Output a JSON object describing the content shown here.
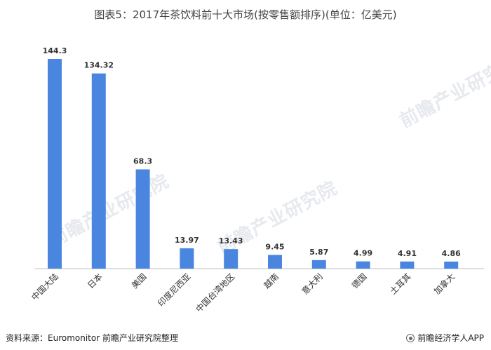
{
  "title": "图表5：2017年茶饮料前十大市场(按零售额排序)(单位：亿美元)",
  "footer": {
    "source": "资料来源：Euromonitor 前瞻产业研究院整理",
    "brand": "前瞻经济学人APP"
  },
  "watermark": "前瞻产业研究院",
  "chart_data": {
    "type": "bar",
    "categories": [
      "中国大陆",
      "日本",
      "美国",
      "印度尼西亚",
      "中国台湾地区",
      "越南",
      "意大利",
      "德国",
      "土耳其",
      "加拿大"
    ],
    "values": [
      144.3,
      134.32,
      68.3,
      13.97,
      13.43,
      9.45,
      5.87,
      4.99,
      4.91,
      4.86
    ],
    "value_labels": [
      "144.3",
      "134.32",
      "68.3",
      "13.97",
      "13.43",
      "9.45",
      "5.87",
      "4.99",
      "4.91",
      "4.86"
    ],
    "ylim": [
      0,
      144.3
    ],
    "bar_color": "#4a86e0",
    "grid": false,
    "legend": "none"
  }
}
